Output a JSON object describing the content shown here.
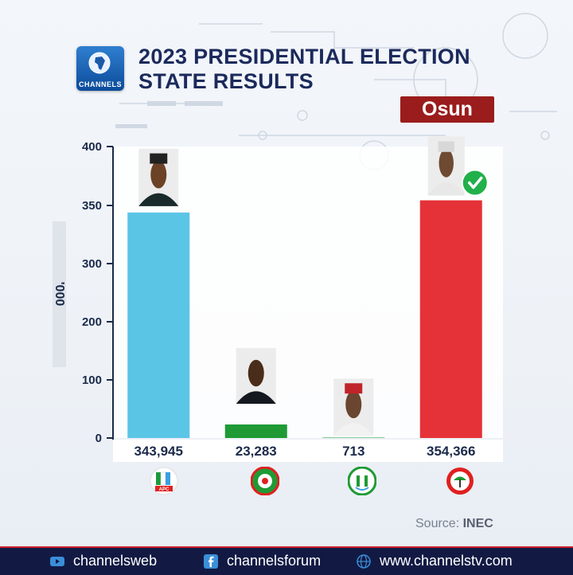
{
  "header": {
    "logo_text": "CHANNELS",
    "title_line1": "2023 PRESIDENTIAL ELECTION",
    "title_line2": "STATE RESULTS",
    "state": "Osun"
  },
  "chart_data": {
    "type": "bar",
    "title": "2023 PRESIDENTIAL ELECTION STATE RESULTS",
    "subtitle": "Osun",
    "ylabel": "'000",
    "yticks": [
      0,
      100,
      200,
      300,
      350,
      400
    ],
    "ylim": [
      0,
      400
    ],
    "categories": [
      "APC",
      "LP",
      "NNPP",
      "PDP"
    ],
    "values": [
      343945,
      23283,
      713,
      354366
    ],
    "value_labels": [
      "343,945",
      "23,283",
      "713",
      "354,366"
    ],
    "colors": [
      "#5bc5e6",
      "#1f9a35",
      "#1f9a35",
      "#e53238"
    ],
    "winner": "PDP"
  },
  "parties": [
    {
      "name": "APC",
      "logo_text": "APC",
      "color": "#e02020"
    },
    {
      "name": "LP",
      "logo_text": "",
      "color": "#1f9a35"
    },
    {
      "name": "NNPP",
      "logo_text": "",
      "color": "#1f9a35"
    },
    {
      "name": "PDP",
      "logo_text": "",
      "color": "#e02020"
    }
  ],
  "source": {
    "label": "Source:",
    "value": "INEC"
  },
  "footer": {
    "youtube": "channelsweb",
    "facebook": "channelsforum",
    "website": "www.channelstv.com"
  }
}
